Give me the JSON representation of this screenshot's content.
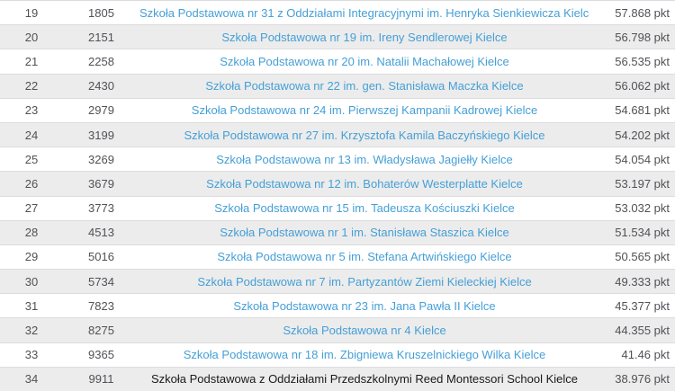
{
  "table": {
    "colors": {
      "link_blue": "#459fd6",
      "number_gray": "#515157",
      "plain_name_black": "#1a1a1a",
      "alt_row_bg": "#ececec",
      "row_border": "#dcdcdc"
    },
    "rows": [
      {
        "rank": "19",
        "id": "1805",
        "name": "Szkoła Podstawowa nr 31 z Oddziałami Integracyjnymi im. Henryka Sienkiewicza Kielce",
        "points": "57.868 pkt",
        "is_link": true
      },
      {
        "rank": "20",
        "id": "2151",
        "name": "Szkoła Podstawowa nr 19 im. Ireny Sendlerowej Kielce",
        "points": "56.798 pkt",
        "is_link": true
      },
      {
        "rank": "21",
        "id": "2258",
        "name": "Szkoła Podstawowa nr 20 im. Natalii Machałowej Kielce",
        "points": "56.535 pkt",
        "is_link": true
      },
      {
        "rank": "22",
        "id": "2430",
        "name": "Szkoła Podstawowa nr 22 im. gen. Stanisława Maczka Kielce",
        "points": "56.062 pkt",
        "is_link": true
      },
      {
        "rank": "23",
        "id": "2979",
        "name": "Szkoła Podstawowa nr 24 im. Pierwszej Kampanii Kadrowej Kielce",
        "points": "54.681 pkt",
        "is_link": true
      },
      {
        "rank": "24",
        "id": "3199",
        "name": "Szkoła Podstawowa nr 27 im. Krzysztofa Kamila Baczyńskiego Kielce",
        "points": "54.202 pkt",
        "is_link": true
      },
      {
        "rank": "25",
        "id": "3269",
        "name": "Szkoła Podstawowa nr 13 im. Władysława Jagiełły Kielce",
        "points": "54.054 pkt",
        "is_link": true
      },
      {
        "rank": "26",
        "id": "3679",
        "name": "Szkoła Podstawowa nr 12 im. Bohaterów Westerplatte Kielce",
        "points": "53.197 pkt",
        "is_link": true
      },
      {
        "rank": "27",
        "id": "3773",
        "name": "Szkoła Podstawowa nr 15 im. Tadeusza Kościuszki Kielce",
        "points": "53.032 pkt",
        "is_link": true
      },
      {
        "rank": "28",
        "id": "4513",
        "name": "Szkoła Podstawowa nr 1 im. Stanisława Staszica Kielce",
        "points": "51.534 pkt",
        "is_link": true
      },
      {
        "rank": "29",
        "id": "5016",
        "name": "Szkoła Podstawowa nr 5 im. Stefana Artwińskiego Kielce",
        "points": "50.565 pkt",
        "is_link": true
      },
      {
        "rank": "30",
        "id": "5734",
        "name": "Szkoła Podstawowa nr 7 im. Partyzantów Ziemi Kieleckiej Kielce",
        "points": "49.333 pkt",
        "is_link": true
      },
      {
        "rank": "31",
        "id": "7823",
        "name": "Szkoła Podstawowa nr 23 im. Jana Pawła II Kielce",
        "points": "45.377 pkt",
        "is_link": true
      },
      {
        "rank": "32",
        "id": "8275",
        "name": "Szkoła Podstawowa nr 4 Kielce",
        "points": "44.355 pkt",
        "is_link": true
      },
      {
        "rank": "33",
        "id": "9365",
        "name": "Szkoła Podstawowa nr 18 im. Zbigniewa Kruszelnickiego Wilka Kielce",
        "points": "41.46 pkt",
        "is_link": true
      },
      {
        "rank": "34",
        "id": "9911",
        "name": "Szkoła Podstawowa z Oddziałami Przedszkolnymi Reed Montessori School Kielce",
        "points": "38.976 pkt",
        "is_link": false
      }
    ]
  }
}
